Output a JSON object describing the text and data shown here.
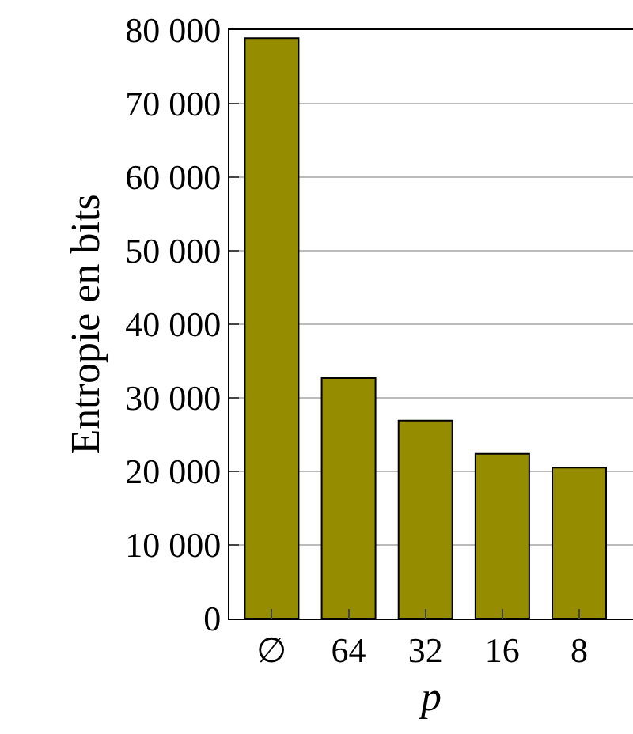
{
  "chart_data": {
    "type": "bar",
    "xlabel": "p",
    "ylabel": "Entropie en bits",
    "categories": [
      "∅",
      "64",
      "32",
      "16",
      "8"
    ],
    "values": [
      78900,
      32700,
      26900,
      22400,
      20500
    ],
    "color": "#968c00",
    "ylim": [
      0,
      80000
    ],
    "yticks": [
      0,
      {
        "value": 10000,
        "label": "10 000"
      },
      {
        "value": 20000,
        "label": "20 000"
      },
      {
        "value": 30000,
        "label": "30 000"
      },
      {
        "value": 40000,
        "label": "40 000"
      },
      {
        "value": 50000,
        "label": "50 000"
      },
      {
        "value": 60000,
        "label": "60 000"
      },
      {
        "value": 70000,
        "label": "70 000"
      },
      {
        "value": 80000,
        "label": "80 000"
      }
    ],
    "grid": "y"
  }
}
